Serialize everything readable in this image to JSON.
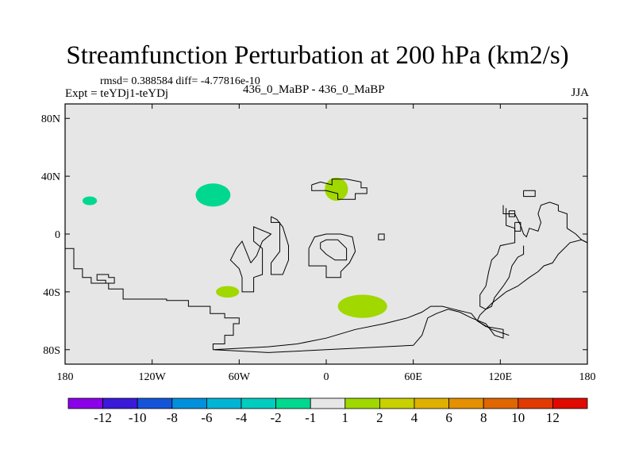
{
  "figure": {
    "title": "Streamfunction Perturbation at 200 hPa (km2/s)",
    "stats": "rmsd= 0.388584 diff= -4.77816e-10",
    "expt": "Expt = teYDj1-teYDj",
    "case": "436_0_MaBP - 436_0_MaBP",
    "season": "JJA"
  },
  "colors": {
    "ocean_fill": "#e6e6e6",
    "land_outline": "#000000",
    "positive_1_2": "#a0d800",
    "negative_m2_m1": "#00d890"
  },
  "chart_data": {
    "type": "heatmap",
    "title": "Streamfunction Perturbation at 200 hPa (km2/s)",
    "projection": "cylindrical equidistant",
    "x_range": [
      -180,
      180
    ],
    "y_range": [
      -90,
      90
    ],
    "x_ticks": [
      {
        "value": -180,
        "label": "180"
      },
      {
        "value": -120,
        "label": "120W"
      },
      {
        "value": -60,
        "label": "60W"
      },
      {
        "value": 0,
        "label": "0"
      },
      {
        "value": 60,
        "label": "60E"
      },
      {
        "value": 120,
        "label": "120E"
      },
      {
        "value": 180,
        "label": "180"
      }
    ],
    "y_ticks": [
      {
        "value": 80,
        "label": "80N"
      },
      {
        "value": 40,
        "label": "40N"
      },
      {
        "value": 0,
        "label": "0"
      },
      {
        "value": -40,
        "label": "40S"
      },
      {
        "value": -80,
        "label": "80S"
      }
    ],
    "anomalies": [
      {
        "name": "anomaly-west-pacific",
        "lon": -163,
        "lat": 23,
        "rlon": 5,
        "rlat": 3,
        "bin": "-2 to -1",
        "color": "#00d890"
      },
      {
        "name": "anomaly-north-atlantic",
        "lon": -78,
        "lat": 27,
        "rlon": 12,
        "rlat": 8,
        "bin": "-2 to -1",
        "color": "#00d890"
      },
      {
        "name": "anomaly-mediterranean",
        "lon": 7,
        "lat": 31,
        "rlon": 8,
        "rlat": 8,
        "bin": "1 to 2",
        "color": "#a0d800"
      },
      {
        "name": "anomaly-south-atlantic",
        "lon": -68,
        "lat": -40,
        "rlon": 8,
        "rlat": 4,
        "bin": "1 to 2",
        "color": "#a0d800"
      },
      {
        "name": "anomaly-southern-ocean",
        "lon": 25,
        "lat": -50,
        "rlon": 17,
        "rlat": 8,
        "bin": "1 to 2",
        "color": "#a0d800"
      }
    ],
    "colorbar": {
      "colors": [
        "#8a00e8",
        "#3a1ad8",
        "#1454d8",
        "#0090dc",
        "#00b4d4",
        "#00ccc0",
        "#00d890",
        "#e6e6e6",
        "#a0d800",
        "#c8d000",
        "#e0b000",
        "#e49000",
        "#e06600",
        "#e03a00",
        "#e00a00"
      ],
      "labels": [
        "-12",
        "-10",
        "-8",
        "-6",
        "-4",
        "-2",
        "-1",
        "1",
        "2",
        "4",
        "6",
        "8",
        "10",
        "12"
      ]
    },
    "land_outline": [
      {
        "name": "outline-antarctica",
        "points": [
          [
            -78,
            -80
          ],
          [
            -78,
            -76
          ],
          [
            -70,
            -76
          ],
          [
            -70,
            -70
          ],
          [
            -64,
            -70
          ],
          [
            -64,
            -62
          ],
          [
            -60,
            -62
          ],
          [
            -60,
            -58
          ],
          [
            -70,
            -58
          ],
          [
            -70,
            -55
          ],
          [
            -80,
            -55
          ],
          [
            -80,
            -50
          ],
          [
            -95,
            -50
          ],
          [
            -95,
            -46
          ],
          [
            -110,
            -46
          ],
          [
            -110,
            -45
          ],
          [
            -140,
            -45
          ],
          [
            -140,
            -38
          ],
          [
            -150,
            -38
          ],
          [
            -150,
            -34
          ],
          [
            -162,
            -34
          ],
          [
            -162,
            -30
          ],
          [
            -168,
            -30
          ],
          [
            -168,
            -24
          ],
          [
            -174,
            -24
          ],
          [
            -174,
            -10
          ],
          [
            -180,
            -10
          ]
        ]
      },
      {
        "name": "outline-antarctic-coast",
        "points": [
          [
            -78,
            -80
          ],
          [
            -40,
            -82
          ],
          [
            0,
            -80
          ],
          [
            60,
            -77
          ],
          [
            66,
            -70
          ],
          [
            68,
            -64
          ],
          [
            70,
            -58
          ],
          [
            76,
            -55
          ],
          [
            84,
            -52
          ],
          [
            92,
            -54
          ],
          [
            100,
            -58
          ],
          [
            110,
            -62
          ],
          [
            116,
            -70
          ],
          [
            122,
            -72
          ],
          [
            122,
            -66
          ],
          [
            110,
            -64
          ],
          [
            104,
            -60
          ],
          [
            100,
            -55
          ],
          [
            88,
            -52
          ],
          [
            80,
            -50
          ],
          [
            72,
            -50
          ],
          [
            66,
            -54
          ],
          [
            56,
            -58
          ],
          [
            40,
            -62
          ],
          [
            20,
            -66
          ],
          [
            0,
            -72
          ],
          [
            -20,
            -76
          ],
          [
            -40,
            -78
          ],
          [
            -78,
            -80
          ]
        ]
      },
      {
        "name": "outline-south-america",
        "points": [
          [
            -52,
            -20
          ],
          [
            -48,
            -15
          ],
          [
            -44,
            -5
          ],
          [
            -38,
            0
          ],
          [
            -50,
            5
          ],
          [
            -50,
            -5
          ],
          [
            -44,
            -10
          ],
          [
            -44,
            -28
          ],
          [
            -50,
            -30
          ],
          [
            -50,
            -40
          ],
          [
            -58,
            -40
          ],
          [
            -58,
            -30
          ],
          [
            -60,
            -24
          ],
          [
            -66,
            -18
          ],
          [
            -62,
            -10
          ],
          [
            -58,
            -5
          ],
          [
            -52,
            -20
          ]
        ]
      },
      {
        "name": "outline-north-america",
        "points": [
          [
            -38,
            12
          ],
          [
            -38,
            8
          ],
          [
            -32,
            8
          ],
          [
            -32,
            -12
          ],
          [
            -38,
            -20
          ],
          [
            -38,
            -28
          ],
          [
            -30,
            -28
          ],
          [
            -26,
            -18
          ],
          [
            -26,
            -8
          ],
          [
            -30,
            5
          ],
          [
            -34,
            10
          ],
          [
            -38,
            12
          ]
        ]
      },
      {
        "name": "outline-africa",
        "points": [
          [
            -12,
            -10
          ],
          [
            -12,
            -22
          ],
          [
            0,
            -22
          ],
          [
            0,
            -30
          ],
          [
            10,
            -30
          ],
          [
            10,
            -26
          ],
          [
            16,
            -20
          ],
          [
            20,
            -12
          ],
          [
            18,
            -2
          ],
          [
            10,
            0
          ],
          [
            0,
            0
          ],
          [
            -8,
            -2
          ],
          [
            -12,
            -10
          ]
        ]
      },
      {
        "name": "outline-africa-inner",
        "points": [
          [
            -4,
            -6
          ],
          [
            0,
            -4
          ],
          [
            8,
            -4
          ],
          [
            14,
            -10
          ],
          [
            14,
            -18
          ],
          [
            6,
            -18
          ],
          [
            0,
            -14
          ],
          [
            -4,
            -10
          ],
          [
            -4,
            -6
          ]
        ]
      },
      {
        "name": "outline-europe",
        "points": [
          [
            -10,
            34
          ],
          [
            -10,
            30
          ],
          [
            0,
            30
          ],
          [
            8,
            28
          ],
          [
            8,
            24
          ],
          [
            20,
            24
          ],
          [
            20,
            28
          ],
          [
            28,
            28
          ],
          [
            28,
            32
          ],
          [
            24,
            32
          ],
          [
            24,
            36
          ],
          [
            14,
            38
          ],
          [
            4,
            38
          ],
          [
            4,
            34
          ],
          [
            -4,
            36
          ],
          [
            -10,
            34
          ]
        ]
      },
      {
        "name": "outline-asia-east",
        "points": [
          [
            122,
            20
          ],
          [
            122,
            14
          ],
          [
            130,
            14
          ],
          [
            132,
            10
          ],
          [
            134,
            6
          ],
          [
            136,
            0
          ],
          [
            138,
            -2
          ],
          [
            140,
            4
          ],
          [
            146,
            2
          ],
          [
            148,
            8
          ],
          [
            146,
            14
          ],
          [
            148,
            20
          ],
          [
            154,
            22
          ],
          [
            160,
            20
          ],
          [
            160,
            16
          ],
          [
            166,
            14
          ],
          [
            166,
            4
          ],
          [
            172,
            0
          ],
          [
            176,
            -4
          ],
          [
            180,
            -6
          ]
        ]
      },
      {
        "name": "outline-asia-coast",
        "points": [
          [
            180,
            -6
          ],
          [
            176,
            -4
          ],
          [
            168,
            -6
          ],
          [
            160,
            -14
          ],
          [
            156,
            -20
          ],
          [
            150,
            -22
          ],
          [
            146,
            -26
          ],
          [
            140,
            -30
          ],
          [
            132,
            -36
          ],
          [
            124,
            -40
          ],
          [
            114,
            -48
          ],
          [
            106,
            -56
          ],
          [
            104,
            -60
          ],
          [
            114,
            -66
          ],
          [
            126,
            -70
          ]
        ]
      },
      {
        "name": "outline-indonesia",
        "points": [
          [
            124,
            18
          ],
          [
            124,
            6
          ],
          [
            130,
            4
          ],
          [
            130,
            -6
          ],
          [
            120,
            -8
          ],
          [
            118,
            -14
          ],
          [
            114,
            -18
          ],
          [
            112,
            -26
          ],
          [
            110,
            -36
          ],
          [
            106,
            -42
          ],
          [
            106,
            -50
          ],
          [
            110,
            -52
          ],
          [
            114,
            -50
          ],
          [
            116,
            -44
          ],
          [
            122,
            -36
          ],
          [
            126,
            -30
          ],
          [
            128,
            -22
          ],
          [
            132,
            -16
          ],
          [
            136,
            -14
          ],
          [
            136,
            -8
          ]
        ]
      },
      {
        "name": "outline-central-america",
        "points": [
          [
            -158,
            -30
          ],
          [
            -158,
            -32
          ],
          [
            -152,
            -32
          ],
          [
            -152,
            -34
          ],
          [
            -146,
            -34
          ],
          [
            -146,
            -30
          ],
          [
            -150,
            -30
          ],
          [
            -150,
            -28
          ],
          [
            -158,
            -28
          ],
          [
            -158,
            -30
          ]
        ]
      },
      {
        "name": "outline-bermuda",
        "points": [
          [
            36,
            0
          ],
          [
            36,
            -4
          ],
          [
            40,
            -4
          ],
          [
            40,
            0
          ],
          [
            36,
            0
          ]
        ]
      },
      {
        "name": "outline-japan",
        "points": [
          [
            126,
            16
          ],
          [
            126,
            12
          ],
          [
            130,
            12
          ],
          [
            130,
            16
          ],
          [
            126,
            16
          ]
        ]
      },
      {
        "name": "outline-kamchatka",
        "points": [
          [
            130,
            8
          ],
          [
            130,
            2
          ],
          [
            134,
            2
          ],
          [
            134,
            8
          ],
          [
            130,
            8
          ]
        ]
      },
      {
        "name": "outline-greenland",
        "points": [
          [
            136,
            30
          ],
          [
            136,
            26
          ],
          [
            144,
            26
          ],
          [
            144,
            30
          ],
          [
            136,
            30
          ]
        ]
      }
    ]
  }
}
